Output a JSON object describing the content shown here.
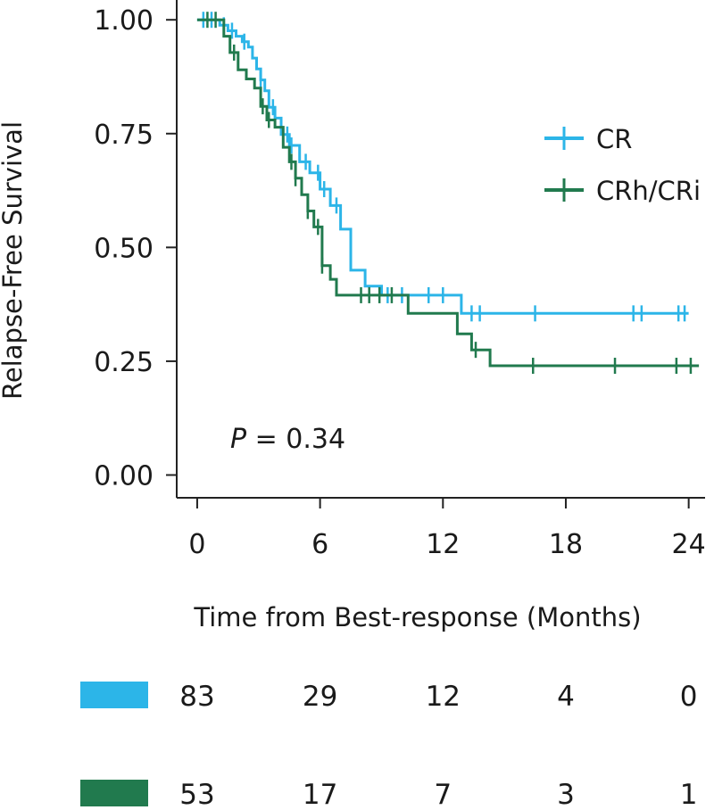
{
  "chart_data": {
    "type": "line",
    "subtype": "kaplan-meier step",
    "xlabel": "Time from Best-response (Months)",
    "ylabel": "Relapse-Free Survival",
    "xlim": [
      -1,
      24.8
    ],
    "ylim": [
      -0.05,
      1.02
    ],
    "x_ticks": [
      0,
      6,
      12,
      18,
      24
    ],
    "x_tick_labels": [
      "0",
      "6",
      "12",
      "18",
      "24"
    ],
    "y_ticks": [
      0.0,
      0.25,
      0.5,
      0.75,
      1.0
    ],
    "y_tick_labels": [
      "0.00",
      "0.25",
      "0.50",
      "0.75",
      "1.00"
    ],
    "grid": false,
    "legend_position": "right",
    "annotation": {
      "italic": "P",
      "rest": " = 0.34"
    },
    "series": [
      {
        "name": "CR",
        "color": "#2cb5e8",
        "steps": [
          [
            0,
            1.0
          ],
          [
            1.1,
            0.988
          ],
          [
            1.5,
            0.976
          ],
          [
            1.9,
            0.964
          ],
          [
            2.2,
            0.952
          ],
          [
            2.5,
            0.94
          ],
          [
            2.7,
            0.916
          ],
          [
            2.9,
            0.892
          ],
          [
            3.1,
            0.868
          ],
          [
            3.3,
            0.844
          ],
          [
            3.5,
            0.808
          ],
          [
            3.8,
            0.784
          ],
          [
            4.1,
            0.748
          ],
          [
            4.5,
            0.724
          ],
          [
            5.0,
            0.688
          ],
          [
            5.5,
            0.664
          ],
          [
            6.0,
            0.628
          ],
          [
            6.5,
            0.592
          ],
          [
            7.0,
            0.54
          ],
          [
            7.5,
            0.45
          ],
          [
            8.2,
            0.415
          ],
          [
            9.0,
            0.395
          ],
          [
            12.9,
            0.355
          ],
          [
            24,
            0.355
          ]
        ],
        "censored": [
          0.3,
          0.7,
          1.3,
          1.7,
          2.3,
          3.1,
          3.7,
          4.4,
          4.6,
          5.3,
          5.9,
          6.2,
          6.8,
          9.3,
          10.0,
          11.3,
          12.0,
          13.4,
          13.8,
          16.5,
          21.3,
          21.7,
          23.5,
          23.8
        ]
      },
      {
        "name": "CRh/CRi",
        "color": "#217a4e",
        "steps": [
          [
            0,
            1.0
          ],
          [
            1.3,
            0.964
          ],
          [
            1.6,
            0.928
          ],
          [
            2.0,
            0.89
          ],
          [
            2.4,
            0.87
          ],
          [
            2.8,
            0.85
          ],
          [
            3.1,
            0.81
          ],
          [
            3.4,
            0.78
          ],
          [
            3.8,
            0.764
          ],
          [
            4.2,
            0.72
          ],
          [
            4.5,
            0.688
          ],
          [
            4.8,
            0.652
          ],
          [
            5.1,
            0.616
          ],
          [
            5.4,
            0.58
          ],
          [
            5.7,
            0.545
          ],
          [
            6.1,
            0.46
          ],
          [
            6.5,
            0.43
          ],
          [
            6.8,
            0.395
          ],
          [
            10.3,
            0.355
          ],
          [
            12.7,
            0.31
          ],
          [
            13.4,
            0.275
          ],
          [
            14.3,
            0.24
          ],
          [
            24.5,
            0.24
          ]
        ],
        "censored": [
          0.5,
          0.9,
          1.8,
          3.2,
          3.5,
          4.6,
          4.8,
          5.4,
          5.9,
          6.1,
          8.0,
          8.4,
          8.9,
          9.5,
          13.6,
          16.4,
          20.4,
          23.4,
          24.1
        ]
      }
    ],
    "risk_table": {
      "times": [
        0,
        6,
        12,
        18,
        24
      ],
      "rows": [
        {
          "series": "CR",
          "color": "#2cb5e8",
          "counts": [
            "83",
            "29",
            "12",
            "4",
            "0"
          ]
        },
        {
          "series": "CRh/CRi",
          "color": "#217a4e",
          "counts": [
            "53",
            "17",
            "7",
            "3",
            "1"
          ]
        }
      ]
    }
  }
}
